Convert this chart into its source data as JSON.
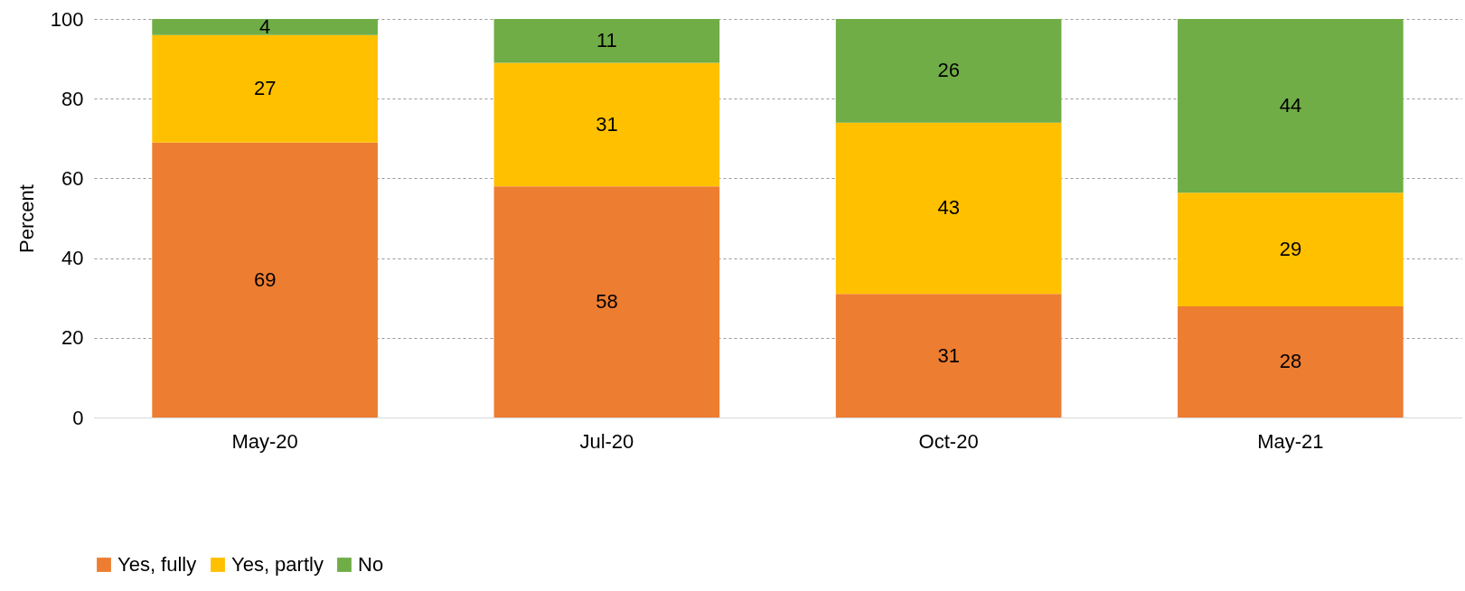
{
  "chart_data": {
    "type": "bar",
    "stacked": true,
    "ylabel": "Percent",
    "categories": [
      "May-20",
      "Jul-20",
      "Oct-20",
      "May-21"
    ],
    "series": [
      {
        "name": "Yes, fully",
        "color": "#ed7d31",
        "values": [
          69,
          58,
          31,
          27.9
        ],
        "value_labels": [
          "69",
          "58",
          "31",
          "28"
        ]
      },
      {
        "name": "Yes, partly",
        "color": "#ffc000",
        "values": [
          27,
          31,
          43,
          28.5
        ],
        "value_labels": [
          "27",
          "31",
          "43",
          "29"
        ]
      },
      {
        "name": "No",
        "color": "#70ad47",
        "values": [
          4,
          11,
          26,
          43.6
        ],
        "value_labels": [
          "4",
          "11",
          "26",
          "44"
        ]
      }
    ],
    "ylim": [
      0,
      100
    ],
    "yticks": [
      0,
      20,
      40,
      60,
      80,
      100
    ],
    "grid": "y",
    "legend": "bottom"
  }
}
